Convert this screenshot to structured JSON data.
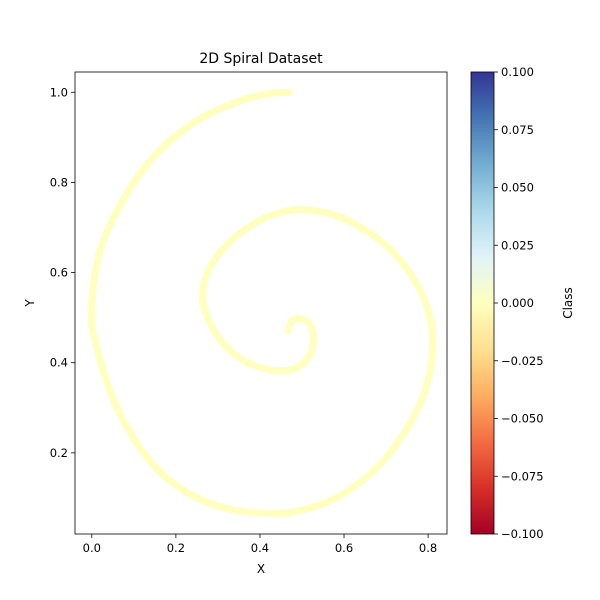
{
  "chart_data": {
    "type": "scatter",
    "title": "2D Spiral Dataset",
    "xlabel": "X",
    "ylabel": "Y",
    "xlim": [
      -0.04,
      0.845
    ],
    "ylim": [
      0.02,
      1.045
    ],
    "xticks": [
      "0.0",
      "0.2",
      "0.4",
      "0.6",
      "0.8"
    ],
    "yticks": [
      "0.2",
      "0.4",
      "0.6",
      "0.8",
      "1.0"
    ],
    "grid": false,
    "series": [
      {
        "class_value": 0.0,
        "color": "#ffffbf",
        "points": [
          [
            0.467,
            0.472
          ],
          [
            0.475,
            0.492
          ],
          [
            0.493,
            0.498
          ],
          [
            0.515,
            0.49
          ],
          [
            0.527,
            0.46
          ],
          [
            0.522,
            0.425
          ],
          [
            0.497,
            0.394
          ],
          [
            0.458,
            0.382
          ],
          [
            0.415,
            0.386
          ],
          [
            0.363,
            0.404
          ],
          [
            0.318,
            0.437
          ],
          [
            0.28,
            0.49
          ],
          [
            0.263,
            0.55
          ],
          [
            0.28,
            0.61
          ],
          [
            0.33,
            0.67
          ],
          [
            0.4,
            0.716
          ],
          [
            0.45,
            0.733
          ],
          [
            0.505,
            0.74
          ],
          [
            0.6,
            0.72
          ],
          [
            0.7,
            0.66
          ],
          [
            0.77,
            0.58
          ],
          [
            0.805,
            0.5
          ],
          [
            0.81,
            0.42
          ],
          [
            0.79,
            0.33
          ],
          [
            0.74,
            0.24
          ],
          [
            0.67,
            0.16
          ],
          [
            0.58,
            0.1
          ],
          [
            0.5,
            0.073
          ],
          [
            0.43,
            0.066
          ],
          [
            0.33,
            0.075
          ],
          [
            0.23,
            0.11
          ],
          [
            0.14,
            0.18
          ],
          [
            0.06,
            0.3
          ],
          [
            0.01,
            0.44
          ],
          [
            0.0,
            0.52
          ],
          [
            0.02,
            0.65
          ],
          [
            0.08,
            0.77
          ],
          [
            0.15,
            0.86
          ],
          [
            0.25,
            0.937
          ],
          [
            0.35,
            0.98
          ],
          [
            0.42,
            0.997
          ],
          [
            0.47,
            1.0
          ]
        ]
      }
    ],
    "colorbar": {
      "label": "Class",
      "range": [
        -0.1,
        0.1
      ],
      "ticks": [
        "0.100",
        "0.075",
        "0.050",
        "0.025",
        "0.000",
        "−0.025",
        "−0.050",
        "−0.075",
        "−0.100"
      ],
      "colormap": "RdYlBu",
      "stops": [
        "#a50026",
        "#d73027",
        "#f46d43",
        "#fdae61",
        "#fee090",
        "#ffffbf",
        "#e0f3f8",
        "#abd9e9",
        "#74add1",
        "#4575b4",
        "#313695"
      ]
    }
  }
}
